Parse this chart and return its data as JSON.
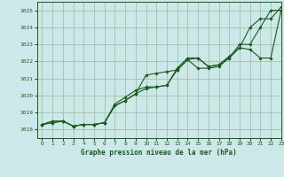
{
  "title": "Graphe pression niveau de la mer (hPa)",
  "xlim": [
    -0.5,
    23
  ],
  "ylim": [
    1017.5,
    1025.5
  ],
  "yticks": [
    1018,
    1019,
    1020,
    1021,
    1022,
    1023,
    1024,
    1025
  ],
  "xticks": [
    0,
    1,
    2,
    3,
    4,
    5,
    6,
    7,
    8,
    9,
    10,
    11,
    12,
    13,
    14,
    15,
    16,
    17,
    18,
    19,
    20,
    21,
    22,
    23
  ],
  "bg_color": "#cce8e8",
  "line_color": "#1a5c1a",
  "grid_color": "#99bb99",
  "series": [
    [
      1018.3,
      1018.4,
      1018.5,
      1018.2,
      1018.3,
      1018.3,
      1018.4,
      1019.4,
      1019.7,
      1020.1,
      1020.4,
      1020.5,
      1020.6,
      1021.5,
      1022.1,
      1022.2,
      1021.7,
      1021.8,
      1022.2,
      1022.8,
      1024.0,
      1024.5,
      1024.5,
      1025.2
    ],
    [
      1018.3,
      1018.4,
      1018.5,
      1018.2,
      1018.3,
      1018.3,
      1018.4,
      1019.4,
      1019.7,
      1020.1,
      1021.2,
      1021.3,
      1021.4,
      1021.5,
      1022.1,
      1021.6,
      1021.6,
      1021.7,
      1022.2,
      1023.0,
      1023.0,
      1024.0,
      1025.0,
      1025.0
    ],
    [
      1018.3,
      1018.5,
      1018.5,
      1018.2,
      1018.3,
      1018.3,
      1018.4,
      1019.5,
      1019.9,
      1020.3,
      1020.5,
      1020.5,
      1020.6,
      1021.6,
      1022.2,
      1022.2,
      1021.7,
      1021.8,
      1022.3,
      1022.8,
      1022.7,
      1022.2,
      1022.2,
      1025.0
    ]
  ],
  "marker": "D",
  "marker_size": 1.8,
  "linewidth": 0.8
}
